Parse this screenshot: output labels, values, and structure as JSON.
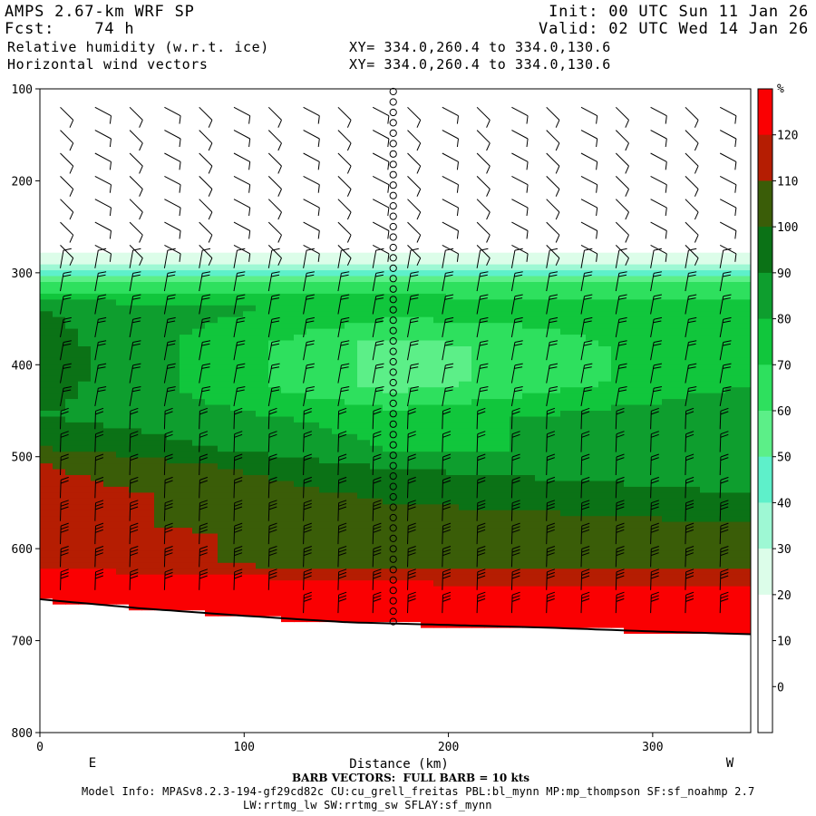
{
  "header": {
    "model": "AMPS 2.67-km WRF SP",
    "fcst": "Fcst:    74 h",
    "init": "Init: 00 UTC Sun 11 Jan 26",
    "valid": "Valid: 02 UTC Wed 14 Jan 26",
    "field1": "Relative humidity (w.r.t. ice)",
    "field2": "Horizontal wind vectors",
    "xy1": "XY= 334.0,260.4 to 334.0,130.6",
    "xy2": "XY= 334.0,260.4 to 334.0,130.6"
  },
  "footer": {
    "barb_note": "BARB VECTORS:  FULL BARB = 10 kts",
    "model_info": "Model Info: MPASv8.2.3-194-gf29cd82c CU:cu_grell_freitas PBL:bl_mynn MP:mp_thompson SF:sf_noahmp 2.7",
    "model_info2": "LW:rrtmg_lw SW:rrtmg_sw SFLAY:sf_mynn"
  },
  "chart_data": {
    "type": "heatmap",
    "title": "Relative humidity (w.r.t. ice)",
    "xlabel": "Distance (km)",
    "ylabel": "",
    "xlim": [
      0,
      348
    ],
    "ylim": [
      800,
      100
    ],
    "x_ticks": [
      0,
      100,
      200,
      300
    ],
    "y_ticks": [
      100,
      200,
      300,
      400,
      500,
      600,
      700,
      800
    ],
    "x_end_labels": {
      "left": "E",
      "right": "W"
    },
    "colorbar": {
      "unit": "%",
      "levels": [
        0,
        10,
        20,
        30,
        40,
        50,
        60,
        70,
        80,
        90,
        100,
        110,
        120
      ],
      "colors": [
        "#ffffff",
        "#ffffff",
        "#ffffff",
        "#dcfde9",
        "#9ef8d4",
        "#5ef0ca",
        "#5cef88",
        "#2ee05e",
        "#11c63c",
        "#0e9e2e",
        "#0b7216",
        "#3a5d08",
        "#b51d02",
        "#fa0002"
      ]
    },
    "rh_profile_pressure_hPa": [
      100,
      280,
      290,
      310,
      340,
      380,
      420,
      460,
      500,
      520,
      560,
      600,
      620,
      640,
      660,
      700
    ],
    "rh_profile_percent_left": [
      10,
      20,
      30,
      60,
      90,
      95,
      95,
      90,
      100,
      110,
      115,
      110,
      115,
      110,
      125,
      125
    ],
    "rh_profile_percent_mid": [
      10,
      20,
      30,
      65,
      75,
      55,
      55,
      75,
      80,
      90,
      100,
      110,
      105,
      110,
      125,
      125
    ],
    "rh_profile_percent_right": [
      10,
      20,
      30,
      60,
      75,
      80,
      80,
      90,
      80,
      85,
      95,
      110,
      110,
      120,
      125,
      125
    ],
    "surface_pressure_hPa": {
      "x": [
        0,
        50,
        100,
        150,
        200,
        250,
        300,
        348
      ],
      "p": [
        655,
        665,
        673,
        680,
        683,
        686,
        690,
        693
      ]
    },
    "vertical_wind_line_km": 173,
    "grid": false,
    "legend": "colorbar right"
  }
}
